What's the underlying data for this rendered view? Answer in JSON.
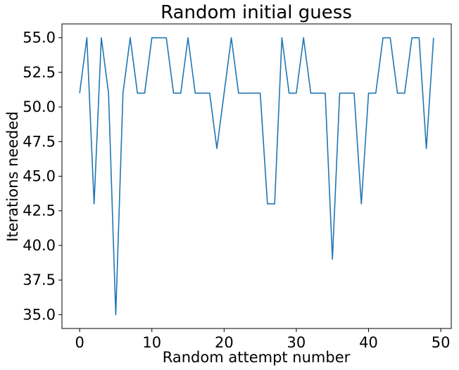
{
  "chart_data": {
    "type": "line",
    "title": "Random initial guess",
    "xlabel": "Random attempt number",
    "ylabel": "Iterations needed",
    "xlim": [
      -2.45,
      51.45
    ],
    "ylim": [
      34.0,
      56.0
    ],
    "xticks": [
      0,
      10,
      20,
      30,
      40,
      50
    ],
    "xtick_labels": [
      "0",
      "10",
      "20",
      "30",
      "40",
      "50"
    ],
    "yticks": [
      35.0,
      37.5,
      40.0,
      42.5,
      45.0,
      47.5,
      50.0,
      52.5,
      55.0
    ],
    "ytick_labels": [
      "35.0",
      "37.5",
      "40.0",
      "42.5",
      "45.0",
      "47.5",
      "50.0",
      "52.5",
      "55.0"
    ],
    "grid": false,
    "legend": "none",
    "series": [
      {
        "color": "#1f77b4",
        "x": [
          0,
          1,
          2,
          3,
          4,
          5,
          6,
          7,
          8,
          9,
          10,
          11,
          12,
          13,
          14,
          15,
          16,
          17,
          18,
          19,
          20,
          21,
          22,
          23,
          24,
          25,
          26,
          27,
          28,
          29,
          30,
          31,
          32,
          33,
          34,
          35,
          36,
          37,
          38,
          39,
          40,
          41,
          42,
          43,
          44,
          45,
          46,
          47,
          48,
          49
        ],
        "y": [
          51,
          55,
          43,
          55,
          51,
          35,
          51,
          55,
          51,
          51,
          55,
          55,
          55,
          51,
          51,
          55,
          51,
          51,
          51,
          47,
          51,
          55,
          51,
          51,
          51,
          51,
          43,
          43,
          55,
          51,
          51,
          55,
          51,
          51,
          51,
          39,
          51,
          51,
          51,
          43,
          51,
          51,
          55,
          55,
          51,
          51,
          55,
          55,
          47,
          55
        ]
      }
    ]
  }
}
